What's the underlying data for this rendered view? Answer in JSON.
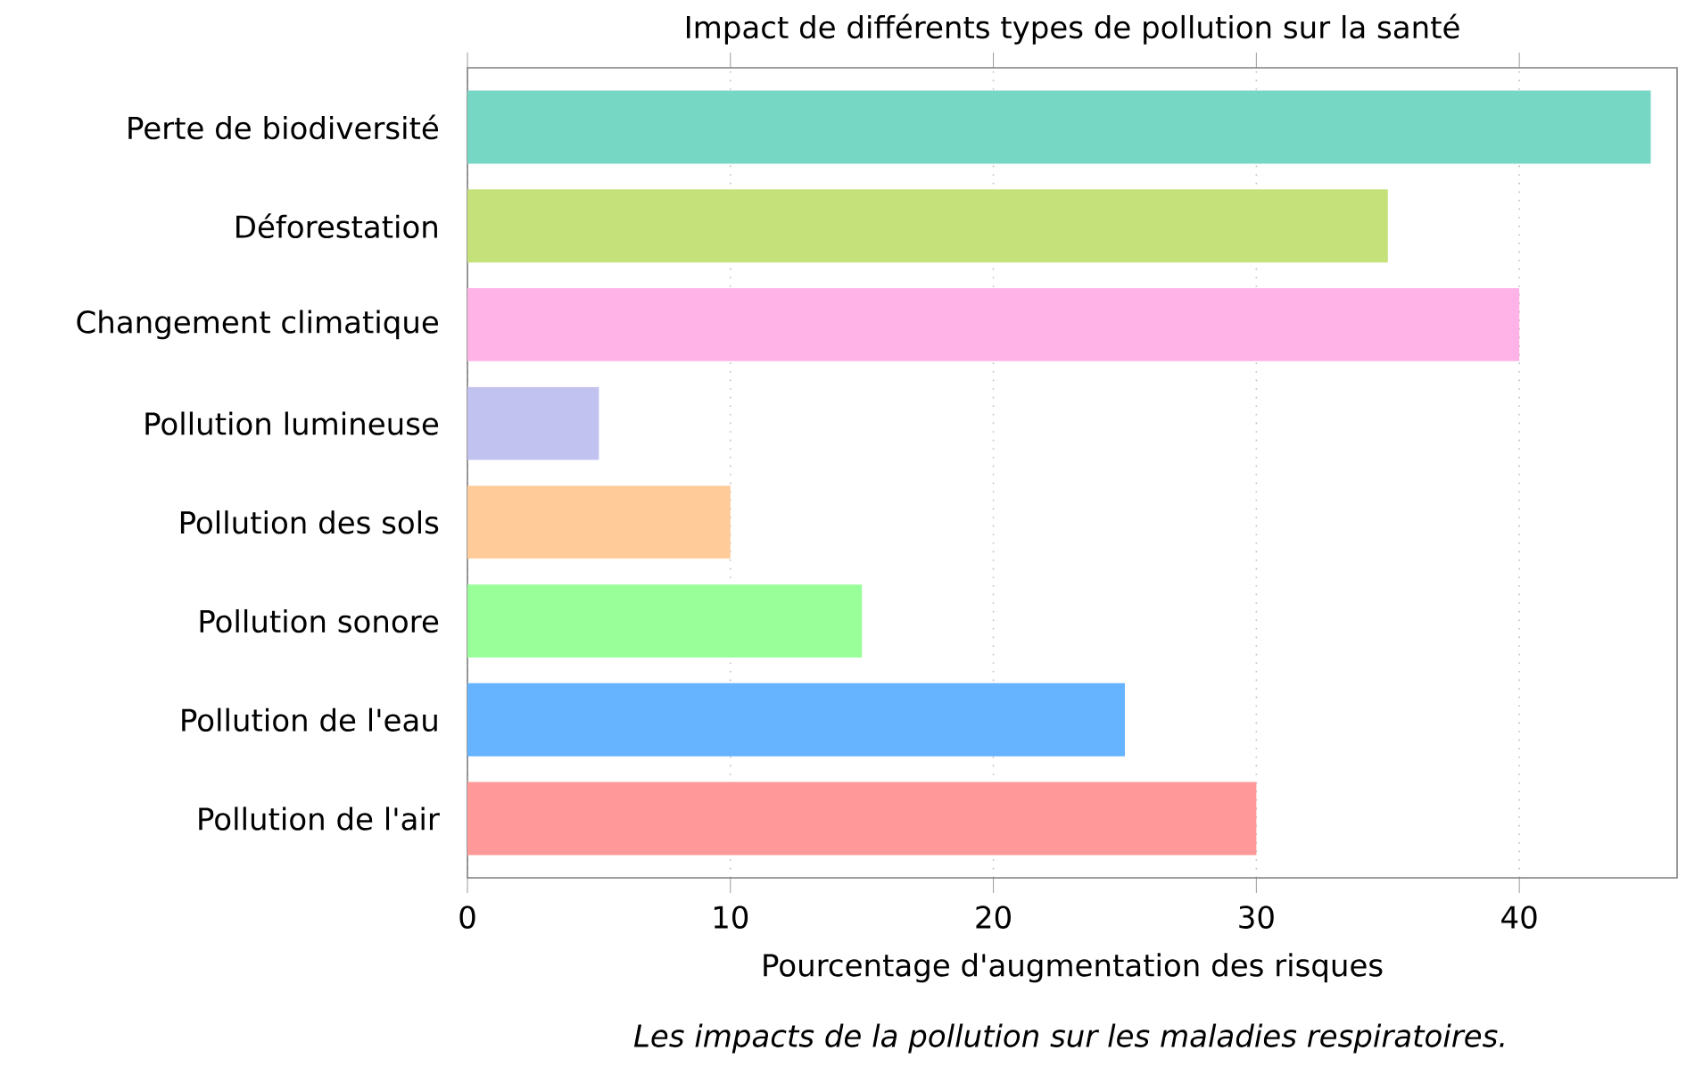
{
  "chart_data": {
    "type": "bar",
    "orientation": "horizontal",
    "title": "Impact de différents types de pollution sur la santé",
    "xlabel": "Pourcentage d'augmentation des risques",
    "annotations": [
      "*Les impacts de la pollution sur les maladies respiratoires.*"
    ],
    "categories": [
      "Perte de biodiversité",
      "Déforestation",
      "Changement climatique",
      "Pollution lumineuse",
      "Pollution des sols",
      "Pollution sonore",
      "Pollution de l'eau",
      "Pollution de l'air"
    ],
    "values": [
      45,
      35,
      40,
      5,
      10,
      15,
      25,
      30
    ],
    "colors": [
      "#76d7c4",
      "#c5e17a",
      "#ffb3e6",
      "#c2c2f0",
      "#ffcc99",
      "#99ff99",
      "#66b3ff",
      "#ff9999"
    ],
    "xlim": [
      0,
      46
    ],
    "xticks": [
      0,
      10,
      20,
      30,
      40
    ],
    "grid": "x"
  }
}
